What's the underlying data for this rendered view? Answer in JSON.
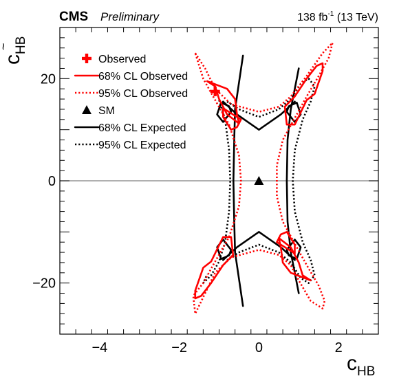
{
  "header": {
    "experiment": "CMS",
    "status": "Preliminary",
    "lumi_value": "138 fb",
    "lumi_exponent": "-1",
    "lumi_energy": "(13 TeV)"
  },
  "chart_data": {
    "type": "scatter",
    "title": "",
    "xlabel": {
      "main": "c",
      "sub": "HB"
    },
    "ylabel": {
      "main": "c",
      "sub": "HB",
      "accent": "~"
    },
    "xlim": [
      -5,
      3
    ],
    "ylim": [
      -30,
      30
    ],
    "xticks": [
      -4,
      -2,
      0,
      2
    ],
    "yticks": [
      -20,
      0,
      20
    ],
    "x_minor_step": 0.4,
    "y_minor_step": 2,
    "grid": false,
    "zero_line": {
      "y": 0,
      "color": "#808080"
    },
    "legend_position": "top-left",
    "legend": [
      {
        "label": "Observed",
        "marker": "cross",
        "color": "#ff0000"
      },
      {
        "label": "68% CL Observed",
        "line": "solid",
        "color": "#ff0000"
      },
      {
        "label": "95% CL Observed",
        "line": "dotted",
        "color": "#ff0000"
      },
      {
        "label": "SM",
        "marker": "triangle",
        "color": "#000000"
      },
      {
        "label": "68% CL Expected",
        "line": "solid",
        "color": "#000000"
      },
      {
        "label": "95% CL Expected",
        "line": "dotted",
        "color": "#000000"
      }
    ],
    "points": {
      "observed": {
        "x": -1.1,
        "y": 17.5,
        "color": "#ff0000"
      },
      "sm": {
        "x": 0,
        "y": 0,
        "color": "#000000"
      }
    },
    "contours": {
      "expected_68": {
        "color": "#000000",
        "style": "solid",
        "paths": [
          [
            [
              -0.4,
              -24.5
            ],
            [
              -0.6,
              -14.0
            ],
            [
              -0.62,
              -8.0
            ],
            [
              -0.64,
              0
            ],
            [
              -0.62,
              8.0
            ],
            [
              -0.6,
              14.0
            ],
            [
              -0.4,
              24.5
            ]
          ],
          [
            [
              -0.9,
              15.5
            ],
            [
              -0.55,
              13.0
            ],
            [
              0.0,
              10.0
            ],
            [
              0.55,
              13.0
            ],
            [
              0.9,
              15.5
            ]
          ],
          [
            [
              -0.9,
              -15.5
            ],
            [
              -0.55,
              -13.0
            ],
            [
              0.0,
              -10.0
            ],
            [
              0.55,
              -13.0
            ],
            [
              0.9,
              -15.5
            ]
          ],
          [
            [
              1.0,
              22.0
            ],
            [
              0.8,
              14.0
            ],
            [
              0.72,
              8.0
            ],
            [
              0.7,
              0
            ],
            [
              0.72,
              -8.0
            ],
            [
              0.8,
              -14.0
            ],
            [
              1.0,
              -22.0
            ]
          ],
          [
            [
              -0.95,
              15.3
            ],
            [
              -1.05,
              13.0
            ],
            [
              -0.9,
              11.5
            ],
            [
              -0.7,
              13.5
            ],
            [
              -0.75,
              14.6
            ],
            [
              -0.95,
              15.3
            ]
          ],
          [
            [
              0.95,
              15.3
            ],
            [
              1.05,
              13.0
            ],
            [
              0.9,
              11.5
            ],
            [
              0.7,
              13.5
            ],
            [
              0.75,
              14.6
            ],
            [
              0.95,
              15.3
            ]
          ],
          [
            [
              -0.95,
              -15.3
            ],
            [
              -1.05,
              -13.0
            ],
            [
              -0.9,
              -11.5
            ],
            [
              -0.7,
              -13.5
            ],
            [
              -0.75,
              -14.6
            ],
            [
              -0.95,
              -15.3
            ]
          ],
          [
            [
              0.95,
              -15.3
            ],
            [
              1.05,
              -13.0
            ],
            [
              0.9,
              -11.5
            ],
            [
              0.7,
              -13.5
            ],
            [
              0.75,
              -14.6
            ],
            [
              0.95,
              -15.3
            ]
          ]
        ]
      },
      "expected_95": {
        "color": "#000000",
        "style": "dotted",
        "paths": [
          [
            [
              -0.8,
              15.5
            ],
            [
              -0.5,
              14.0
            ],
            [
              0.0,
              12.5
            ],
            [
              0.5,
              14.0
            ],
            [
              0.8,
              16.0
            ],
            [
              1.05,
              19.0
            ],
            [
              1.25,
              20.0
            ],
            [
              1.4,
              18.5
            ],
            [
              1.3,
              15.5
            ],
            [
              1.1,
              12.0
            ],
            [
              0.9,
              6.0
            ],
            [
              0.85,
              0
            ],
            [
              0.9,
              -6.0
            ],
            [
              1.1,
              -12.0
            ],
            [
              1.3,
              -15.5
            ],
            [
              1.4,
              -18.5
            ],
            [
              1.25,
              -20.0
            ],
            [
              1.05,
              -19.0
            ],
            [
              0.8,
              -16.0
            ],
            [
              0.5,
              -14.0
            ],
            [
              0.0,
              -12.5
            ],
            [
              -0.5,
              -14.0
            ],
            [
              -0.8,
              -15.5
            ]
          ],
          [
            [
              -1.0,
              15.8
            ],
            [
              -0.85,
              12.0
            ],
            [
              -0.75,
              6.0
            ],
            [
              -0.72,
              0
            ],
            [
              -0.75,
              -6.0
            ],
            [
              -0.85,
              -12.0
            ],
            [
              -1.0,
              -15.8
            ],
            [
              -1.2,
              -18.5
            ],
            [
              -1.4,
              -20.0
            ],
            [
              -1.3,
              -18.3
            ]
          ]
        ]
      },
      "observed_68": {
        "color": "#ff0000",
        "style": "solid",
        "paths": [
          [
            [
              1.2,
              15.8
            ],
            [
              1.4,
              17.0
            ],
            [
              1.6,
              21.5
            ],
            [
              1.6,
              23.0
            ],
            [
              1.45,
              22.5
            ],
            [
              1.2,
              20.0
            ],
            [
              0.9,
              16.5
            ],
            [
              0.65,
              14.5
            ],
            [
              0.7,
              11.0
            ],
            [
              0.9,
              11.0
            ],
            [
              1.2,
              15.8
            ]
          ],
          [
            [
              -1.0,
              16.0
            ],
            [
              -0.8,
              13.0
            ],
            [
              -0.5,
              11.2
            ],
            [
              -0.55,
              13.0
            ],
            [
              -0.6,
              16.0
            ],
            [
              -0.8,
              18.0
            ],
            [
              -1.3,
              19.5
            ],
            [
              -1.1,
              18.5
            ],
            [
              -1.0,
              16.0
            ]
          ],
          [
            [
              -0.9,
              14.2
            ],
            [
              -0.45,
              12.0
            ],
            [
              -0.55,
              10.5
            ],
            [
              -0.7,
              10.0
            ],
            [
              -0.9,
              12.5
            ],
            [
              -0.9,
              14.2
            ]
          ],
          [
            [
              1.0,
              -16.0
            ],
            [
              0.8,
              -13.0
            ],
            [
              0.5,
              -11.2
            ],
            [
              0.55,
              -13.0
            ],
            [
              0.6,
              -16.0
            ],
            [
              0.8,
              -18.0
            ],
            [
              1.3,
              -19.5
            ],
            [
              1.1,
              -18.5
            ],
            [
              1.0,
              -16.0
            ]
          ],
          [
            [
              0.9,
              -14.2
            ],
            [
              0.45,
              -12.0
            ],
            [
              0.55,
              -10.5
            ],
            [
              0.7,
              -10.0
            ],
            [
              0.9,
              -12.5
            ],
            [
              0.9,
              -14.2
            ]
          ],
          [
            [
              -1.2,
              -15.8
            ],
            [
              -1.4,
              -17.0
            ],
            [
              -1.6,
              -21.5
            ],
            [
              -1.6,
              -23.0
            ],
            [
              -1.45,
              -22.5
            ],
            [
              -1.2,
              -20.0
            ],
            [
              -0.9,
              -16.5
            ],
            [
              -0.65,
              -14.5
            ],
            [
              -0.7,
              -11.0
            ],
            [
              -0.9,
              -11.0
            ],
            [
              -1.2,
              -15.8
            ]
          ]
        ]
      },
      "observed_95": {
        "color": "#ff0000",
        "style": "dotted",
        "paths": [
          [
            [
              -1.6,
              25.0
            ],
            [
              -1.35,
              22.0
            ],
            [
              -1.1,
              18.0
            ],
            [
              -0.7,
              15.0
            ],
            [
              0.0,
              13.5
            ],
            [
              0.5,
              14.5
            ],
            [
              0.8,
              16.5
            ],
            [
              1.2,
              20.5
            ],
            [
              1.6,
              25.0
            ],
            [
              1.85,
              27.0
            ],
            [
              1.75,
              24.0
            ],
            [
              1.5,
              20.5
            ],
            [
              1.2,
              16.5
            ],
            [
              0.95,
              13.0
            ],
            [
              0.6,
              8.0
            ],
            [
              0.45,
              3.0
            ],
            [
              0.45,
              -3.0
            ],
            [
              0.6,
              -8.0
            ],
            [
              0.95,
              -13.0
            ],
            [
              1.2,
              -16.5
            ],
            [
              1.5,
              -20.5
            ],
            [
              1.65,
              -23.5
            ],
            [
              1.6,
              -25.0
            ],
            [
              1.3,
              -23.5
            ],
            [
              1.0,
              -19.5
            ],
            [
              0.8,
              -16.5
            ],
            [
              0.5,
              -14.5
            ],
            [
              0.0,
              -13.5
            ],
            [
              -0.7,
              -15.0
            ],
            [
              -1.1,
              -18.0
            ],
            [
              -1.35,
              -22.0
            ],
            [
              -1.6,
              -26.0
            ],
            [
              -1.65,
              -22.5
            ],
            [
              -1.4,
              -20.0
            ],
            [
              -1.15,
              -16.5
            ],
            [
              -0.75,
              -11.0
            ],
            [
              -0.5,
              -5.0
            ],
            [
              -0.45,
              0
            ],
            [
              -0.5,
              5.0
            ],
            [
              -0.75,
              11.0
            ],
            [
              -1.15,
              16.5
            ],
            [
              -1.4,
              20.0
            ],
            [
              -1.6,
              25.0
            ]
          ]
        ]
      }
    }
  }
}
